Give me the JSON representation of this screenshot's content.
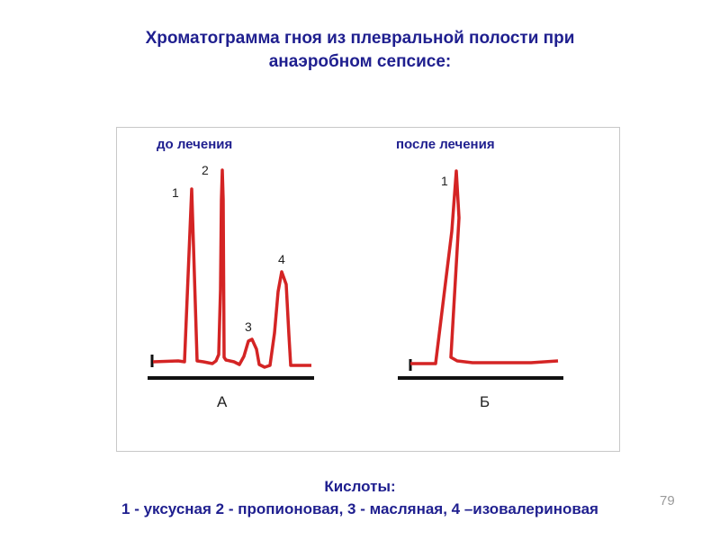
{
  "title": {
    "line1": "Хроматограмма гноя из плевральной полости при",
    "line2": "анаэробном сепсисе:"
  },
  "panels": [
    {
      "heading": "до лечения",
      "axis_label": "А",
      "peak_labels": [
        "1",
        "2",
        "3",
        "4"
      ]
    },
    {
      "heading": "после лечения",
      "axis_label": "Б",
      "peak_labels": [
        "1"
      ]
    }
  ],
  "footer": {
    "line1": "Кислоты:",
    "line2": "1 - уксусная  2 - пропионовая,  3 - масляная, 4 –изовалериновая"
  },
  "page_number": "79",
  "colors": {
    "text": "#1f1f8f",
    "trace": "#d42424",
    "axis": "#111111"
  }
}
